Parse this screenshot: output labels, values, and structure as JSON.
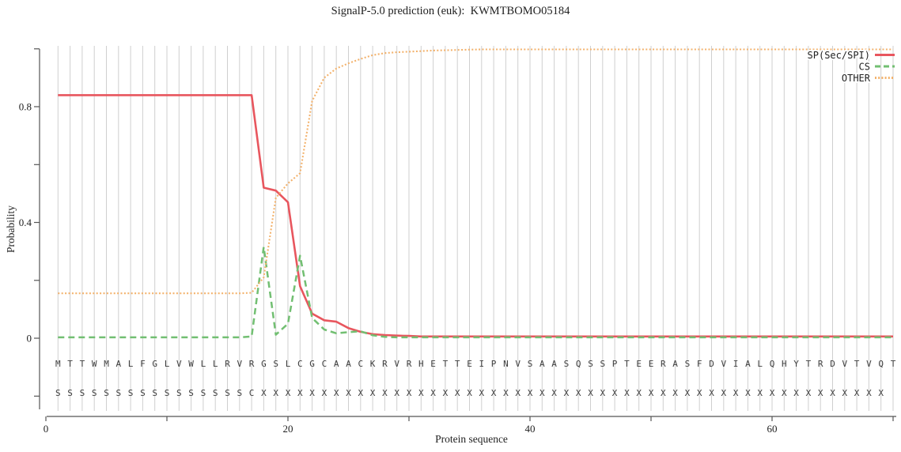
{
  "title": "SignalP-5.0 prediction (euk):  KWMTBOMO05184",
  "chart_data": {
    "type": "line",
    "title": "SignalP-5.0 prediction (euk):  KWMTBOMO05184",
    "xlabel": "Protein sequence",
    "ylabel": "Probability",
    "xlim": [
      0,
      70
    ],
    "ylim": [
      -0.25,
      1.02
    ],
    "grid": "vertical gridline at every residue position",
    "legend_position": "top-right",
    "x_ticks_major": [
      {
        "v": 0,
        "label": "0"
      },
      {
        "v": 20,
        "label": "20"
      },
      {
        "v": 40,
        "label": "40"
      },
      {
        "v": 60,
        "label": "60"
      }
    ],
    "x_ticks_minor": [
      10,
      30,
      50,
      70
    ],
    "y_ticks_major": [
      {
        "v": 0,
        "label": "0"
      },
      {
        "v": 0.4,
        "label": "0.4"
      },
      {
        "v": 0.8,
        "label": "0.8"
      }
    ],
    "y_ticks_minor": [
      -0.2,
      0.2,
      0.6,
      1.0
    ],
    "x": "residue positions 1-70",
    "sequence": "MTTWMALFGLVWLLRVRGSLCGCAACKRVRHETTEIPNVSAASQSSPTEERASFDVIALQHYTRDVTVQT",
    "marker_row": "SSSSSSSSSSSSSSSSCXXXXXXXXXXXXXXXXXXXXXXXXXXXXXXXXXXXXXXXXXXXXXXXXXXXX",
    "series": [
      {
        "name": "SP(Sec/SPI)",
        "color": "#e8565e",
        "style": "solid",
        "values": [
          0.84,
          0.84,
          0.84,
          0.84,
          0.84,
          0.84,
          0.84,
          0.84,
          0.84,
          0.84,
          0.84,
          0.84,
          0.84,
          0.84,
          0.84,
          0.84,
          0.84,
          0.52,
          0.51,
          0.47,
          0.18,
          0.085,
          0.062,
          0.057,
          0.035,
          0.022,
          0.014,
          0.011,
          0.009,
          0.008,
          0.006,
          0.006,
          0.006,
          0.006,
          0.006,
          0.006,
          0.006,
          0.006,
          0.006,
          0.006,
          0.006,
          0.006,
          0.006,
          0.006,
          0.006,
          0.006,
          0.006,
          0.006,
          0.006,
          0.006,
          0.006,
          0.006,
          0.006,
          0.006,
          0.006,
          0.006,
          0.006,
          0.006,
          0.006,
          0.006,
          0.006,
          0.006,
          0.006,
          0.006,
          0.006,
          0.006,
          0.006,
          0.006,
          0.006,
          0.006
        ]
      },
      {
        "name": "CS",
        "color": "#72bf72",
        "style": "dashed",
        "values": [
          0.003,
          0.003,
          0.003,
          0.003,
          0.003,
          0.003,
          0.003,
          0.003,
          0.003,
          0.003,
          0.003,
          0.003,
          0.003,
          0.003,
          0.003,
          0.003,
          0.006,
          0.315,
          0.012,
          0.05,
          0.285,
          0.07,
          0.03,
          0.017,
          0.021,
          0.024,
          0.01,
          0.005,
          0.003,
          0.003,
          0.003,
          0.003,
          0.003,
          0.003,
          0.003,
          0.003,
          0.003,
          0.003,
          0.003,
          0.003,
          0.003,
          0.003,
          0.003,
          0.003,
          0.003,
          0.003,
          0.003,
          0.003,
          0.003,
          0.003,
          0.003,
          0.003,
          0.003,
          0.003,
          0.003,
          0.003,
          0.003,
          0.003,
          0.003,
          0.003,
          0.003,
          0.003,
          0.003,
          0.003,
          0.003,
          0.003,
          0.003,
          0.003,
          0.003,
          0.003
        ]
      },
      {
        "name": "OTHER",
        "color": "#f3b26c",
        "style": "dotted",
        "values": [
          0.155,
          0.155,
          0.155,
          0.155,
          0.155,
          0.155,
          0.155,
          0.155,
          0.155,
          0.155,
          0.155,
          0.155,
          0.155,
          0.155,
          0.155,
          0.155,
          0.157,
          0.21,
          0.485,
          0.535,
          0.57,
          0.82,
          0.9,
          0.932,
          0.95,
          0.965,
          0.978,
          0.985,
          0.988,
          0.99,
          0.992,
          0.994,
          0.995,
          0.996,
          0.997,
          0.998,
          0.998,
          0.998,
          0.998,
          0.998,
          0.998,
          0.998,
          0.998,
          0.998,
          0.998,
          0.998,
          0.998,
          0.998,
          0.998,
          0.998,
          0.998,
          0.998,
          0.998,
          0.998,
          0.998,
          0.998,
          0.998,
          0.998,
          0.998,
          0.998,
          0.998,
          0.998,
          0.998,
          0.998,
          0.998,
          0.998,
          0.998,
          0.998,
          0.998,
          0.998
        ]
      }
    ]
  }
}
